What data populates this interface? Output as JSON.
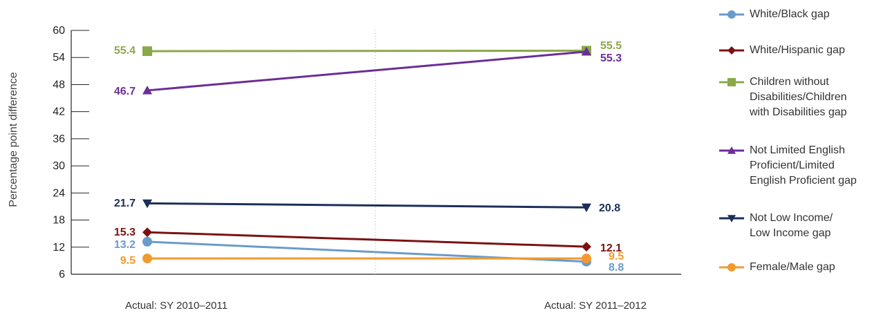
{
  "chart_data": {
    "type": "line",
    "title": "",
    "xlabel": "",
    "ylabel": "Percentage point difference",
    "categories": [
      "Actual: SY 2010–2011",
      "Actual: SY 2011–2012"
    ],
    "ylim": [
      6,
      60
    ],
    "yticks": [
      "60",
      "54",
      "48",
      "42",
      "36",
      "30",
      "24",
      "18",
      "12",
      "6"
    ],
    "grid": "vertical dotted divider between periods",
    "legend_position": "right",
    "series": [
      {
        "name": "White/Black gap",
        "values": [
          13.2,
          8.8
        ],
        "labels": [
          "13.2",
          "8.8"
        ],
        "color": "#6a9bc9",
        "marker": "circle"
      },
      {
        "name": "White/Hispanic gap",
        "values": [
          15.3,
          12.1
        ],
        "labels": [
          "15.3",
          "12.1"
        ],
        "color": "#7b1113",
        "marker": "diamond"
      },
      {
        "name": "Children without Disabilities/Children with Disabilities gap",
        "values": [
          55.4,
          55.5
        ],
        "labels": [
          "55.4",
          "55.5"
        ],
        "color": "#8ba84a",
        "marker": "square"
      },
      {
        "name": "Not Limited English Proficient/Limited English Proficient gap",
        "values": [
          46.7,
          55.3
        ],
        "labels": [
          "46.7",
          "55.3"
        ],
        "color": "#6b2d96",
        "marker": "triangle-up"
      },
      {
        "name": "Not Low Income/ Low Income gap",
        "values": [
          21.7,
          20.8
        ],
        "labels": [
          "21.7",
          "20.8"
        ],
        "color": "#1c2f5a",
        "marker": "triangle-down"
      },
      {
        "name": "Female/Male gap",
        "values": [
          9.5,
          9.5
        ],
        "labels": [
          "9.5",
          "9.5"
        ],
        "color": "#f29a2e",
        "marker": "circle"
      }
    ]
  },
  "legend": {
    "items": [
      {
        "text": "White/Black gap",
        "color": "#6a9bc9",
        "marker": "circle"
      },
      {
        "text": "White/Hispanic gap",
        "color": "#7b1113",
        "marker": "diamond"
      },
      {
        "text": "Children without\nDisabilities/Children\nwith Disabilities gap",
        "color": "#8ba84a",
        "marker": "square"
      },
      {
        "text": "Not Limited English\nProficient/Limited\nEnglish Proficient gap",
        "color": "#6b2d96",
        "marker": "triangle-up"
      },
      {
        "text": "Not Low Income/\nLow Income gap",
        "color": "#1c2f5a",
        "marker": "triangle-down"
      },
      {
        "text": "Female/Male gap",
        "color": "#f29a2e",
        "marker": "circle"
      }
    ]
  }
}
